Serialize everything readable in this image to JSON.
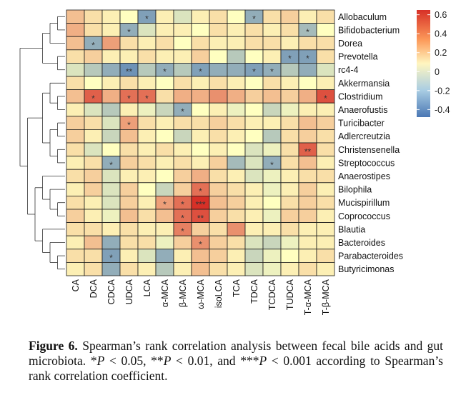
{
  "chart_data": {
    "type": "heatmap",
    "title": "",
    "rows": [
      "Allobaculum",
      "Bifidobacterium",
      "Dorea",
      "Prevotella",
      "rc4-4",
      "Akkermansia",
      "Clostridium",
      "Anaerofustis",
      "Turicibacter",
      "Adlercreutzia",
      "Christensenella",
      "Streptococcus",
      "Anaerostipes",
      "Bilophila",
      "Mucispirillum",
      "Coprococcus",
      "Blautia",
      "Bacteroides",
      "Parabacteroides",
      "Butyricimonas"
    ],
    "columns": [
      "CA",
      "DCA",
      "CDCA",
      "UDCA",
      "LCA",
      "α-MCA",
      "β-MCA",
      "ω-MCA",
      "isoLCA",
      "TCA",
      "TDCA",
      "TCDCA",
      "TUDCA",
      "T-α-MCA",
      "T-β-MCA"
    ],
    "values": [
      [
        0.2,
        0.1,
        0.05,
        0.0,
        -0.35,
        0.05,
        -0.1,
        0.05,
        0.1,
        0.0,
        -0.3,
        0.1,
        0.15,
        0.05,
        0.1
      ],
      [
        0.25,
        0.1,
        0.05,
        -0.3,
        -0.1,
        0.05,
        0.05,
        0.0,
        0.1,
        0.05,
        0.1,
        0.05,
        0.1,
        -0.25,
        0.0
      ],
      [
        0.2,
        -0.3,
        0.3,
        0.1,
        0.05,
        0.1,
        0.0,
        0.1,
        0.05,
        0.05,
        0.1,
        0.1,
        0.05,
        0.1,
        0.1
      ],
      [
        0.1,
        0.15,
        0.05,
        0.05,
        0.1,
        0.05,
        0.05,
        0.15,
        0.0,
        -0.2,
        0.0,
        0.05,
        -0.35,
        -0.35,
        0.1
      ],
      [
        -0.1,
        -0.2,
        -0.3,
        -0.4,
        -0.2,
        -0.3,
        -0.2,
        -0.35,
        -0.3,
        -0.3,
        -0.35,
        -0.3,
        -0.2,
        -0.3,
        -0.1
      ],
      [
        0.1,
        0.0,
        0.05,
        0.1,
        0.05,
        0.0,
        0.1,
        0.05,
        0.1,
        0.05,
        0.0,
        0.1,
        0.05,
        0.0,
        0.05
      ],
      [
        0.2,
        0.5,
        0.25,
        0.45,
        0.45,
        0.1,
        0.25,
        0.25,
        0.35,
        0.25,
        0.15,
        0.2,
        0.15,
        0.25,
        0.55
      ],
      [
        0.05,
        -0.1,
        -0.2,
        0.05,
        -0.05,
        -0.15,
        -0.3,
        0.0,
        0.05,
        -0.05,
        0.0,
        -0.15,
        -0.05,
        0.05,
        0.05
      ],
      [
        0.15,
        0.1,
        -0.1,
        0.3,
        0.1,
        0.05,
        0.1,
        0.1,
        0.15,
        0.1,
        0.05,
        0.05,
        0.1,
        0.2,
        0.15
      ],
      [
        0.15,
        0.05,
        -0.15,
        0.2,
        0.05,
        0.0,
        -0.15,
        0.05,
        0.1,
        0.05,
        0.0,
        -0.2,
        0.1,
        0.15,
        0.1
      ],
      [
        0.1,
        -0.1,
        0.0,
        0.1,
        0.05,
        0.1,
        0.05,
        0.0,
        0.05,
        0.0,
        -0.1,
        -0.05,
        0.1,
        0.5,
        0.1
      ],
      [
        0.05,
        0.1,
        -0.3,
        0.15,
        0.1,
        0.05,
        0.1,
        0.05,
        0.15,
        -0.25,
        -0.1,
        -0.3,
        0.1,
        0.2,
        0.05
      ],
      [
        0.1,
        0.15,
        -0.1,
        0.05,
        0.05,
        0.0,
        0.15,
        0.25,
        0.1,
        0.05,
        -0.1,
        -0.05,
        0.05,
        0.1,
        0.1
      ],
      [
        0.05,
        0.15,
        -0.1,
        0.15,
        0.0,
        -0.15,
        0.15,
        0.45,
        0.15,
        0.1,
        0.05,
        -0.05,
        0.05,
        0.15,
        0.05
      ],
      [
        0.1,
        0.05,
        -0.1,
        0.15,
        0.05,
        0.3,
        0.45,
        0.65,
        0.2,
        0.15,
        0.05,
        0.0,
        0.1,
        0.15,
        0.1
      ],
      [
        0.15,
        0.05,
        -0.05,
        0.2,
        0.1,
        0.2,
        0.45,
        0.55,
        0.15,
        0.1,
        0.05,
        -0.05,
        0.15,
        0.15,
        0.05
      ],
      [
        0.1,
        0.1,
        0.05,
        0.1,
        0.05,
        0.05,
        0.4,
        0.15,
        0.1,
        0.35,
        0.05,
        0.05,
        0.1,
        0.05,
        0.05
      ],
      [
        0.05,
        0.2,
        -0.3,
        0.1,
        0.1,
        -0.05,
        0.15,
        0.35,
        0.15,
        0.1,
        -0.1,
        -0.15,
        -0.05,
        0.05,
        0.05
      ],
      [
        0.1,
        0.1,
        -0.35,
        0.05,
        -0.1,
        -0.3,
        0.05,
        0.2,
        0.15,
        0.05,
        -0.15,
        -0.05,
        0.0,
        0.05,
        0.1
      ],
      [
        0.05,
        0.1,
        -0.3,
        0.1,
        0.05,
        -0.2,
        0.05,
        0.2,
        0.1,
        0.05,
        -0.1,
        -0.05,
        0.05,
        0.1,
        0.05
      ]
    ],
    "significance": [
      [
        "",
        "",
        "",
        "",
        "*",
        "",
        "",
        "",
        "",
        "",
        "*",
        "",
        "",
        "",
        ""
      ],
      [
        "",
        "",
        "",
        "*",
        "",
        "",
        "",
        "",
        "",
        "",
        "",
        "",
        "",
        "*",
        ""
      ],
      [
        "",
        "*",
        "",
        "",
        "",
        "",
        "",
        "",
        "",
        "",
        "",
        "",
        "",
        "",
        ""
      ],
      [
        "",
        "",
        "",
        "",
        "",
        "",
        "",
        "",
        "",
        "",
        "",
        "",
        "*",
        "*",
        ""
      ],
      [
        "",
        "",
        "",
        "**",
        "",
        "*",
        "",
        "*",
        "",
        "",
        "*",
        "*",
        "",
        "",
        ""
      ],
      [
        "",
        "",
        "",
        "",
        "",
        "",
        "",
        "",
        "",
        "",
        "",
        "",
        "",
        "",
        ""
      ],
      [
        "",
        "*",
        "",
        "*",
        "*",
        "",
        "",
        "",
        "",
        "",
        "",
        "",
        "",
        "",
        "*"
      ],
      [
        "",
        "",
        "",
        "",
        "",
        "",
        "*",
        "",
        "",
        "",
        "",
        "",
        "",
        "",
        ""
      ],
      [
        "",
        "",
        "",
        "*",
        "",
        "",
        "",
        "",
        "",
        "",
        "",
        "",
        "",
        "",
        ""
      ],
      [
        "",
        "",
        "",
        "",
        "",
        "",
        "",
        "",
        "",
        "",
        "",
        "",
        "",
        "",
        ""
      ],
      [
        "",
        "",
        "",
        "",
        "",
        "",
        "",
        "",
        "",
        "",
        "",
        "",
        "",
        "**",
        ""
      ],
      [
        "",
        "",
        "*",
        "",
        "",
        "",
        "",
        "",
        "",
        "",
        "",
        "*",
        "",
        "",
        ""
      ],
      [
        "",
        "",
        "",
        "",
        "",
        "",
        "",
        "",
        "",
        "",
        "",
        "",
        "",
        "",
        ""
      ],
      [
        "",
        "",
        "",
        "",
        "",
        "",
        "",
        "*",
        "",
        "",
        "",
        "",
        "",
        "",
        ""
      ],
      [
        "",
        "",
        "",
        "",
        "",
        "*",
        "*",
        "***",
        "",
        "",
        "",
        "",
        "",
        "",
        ""
      ],
      [
        "",
        "",
        "",
        "",
        "",
        "",
        "*",
        "**",
        "",
        "",
        "",
        "",
        "",
        "",
        ""
      ],
      [
        "",
        "",
        "",
        "",
        "",
        "",
        "*",
        "",
        "",
        "",
        "",
        "",
        "",
        "",
        ""
      ],
      [
        "",
        "",
        "",
        "",
        "",
        "",
        "",
        "*",
        "",
        "",
        "",
        "",
        "",
        "",
        ""
      ],
      [
        "",
        "",
        "*",
        "",
        "",
        "",
        "",
        "",
        "",
        "",
        "",
        "",
        "",
        "",
        ""
      ],
      [
        "",
        "",
        "",
        "",
        "",
        "",
        "",
        "",
        "",
        "",
        "",
        "",
        "",
        "",
        ""
      ]
    ],
    "color_range": [
      -0.5,
      0.65
    ],
    "legend": {
      "ticks": [
        0.6,
        0.4,
        0.2,
        0,
        -0.2,
        -0.4
      ],
      "tick_labels": [
        "0.6",
        "0.4",
        "0.2",
        "0",
        "-0.2",
        "-0.4"
      ],
      "position": "top-right"
    },
    "colors": {
      "low": "#4a77b4",
      "mid": "#ffffc0",
      "high": "#d73027",
      "grid": "#1a1a1a"
    }
  },
  "caption": {
    "label": "Figure 6.",
    "text_before": " Spearman’s rank correlation analysis between fecal bile acids and gut microbiota. *",
    "p1": "P",
    "mid1": " < 0.05, **",
    "p2": "P",
    "mid2": " < 0.01, and ***",
    "p3": "P",
    "text_after": " < 0.001 according to Spearman’s rank correlation coefficient."
  }
}
